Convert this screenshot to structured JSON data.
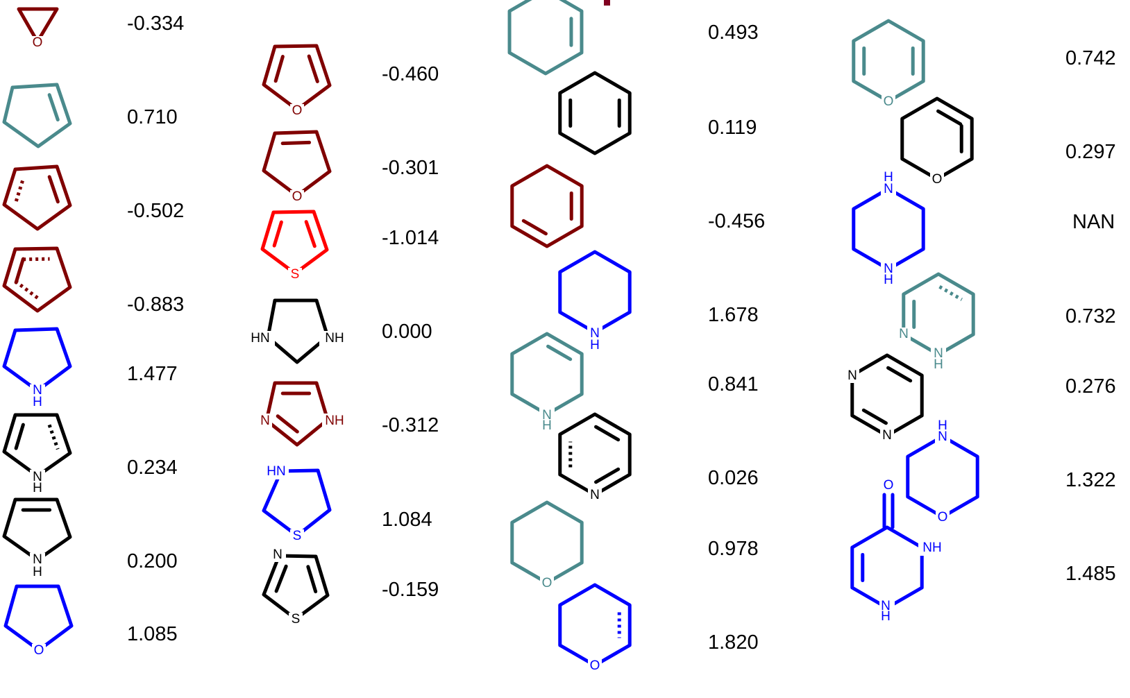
{
  "colors": {
    "dark_red": "#800000",
    "teal": "#4A8A8C",
    "black": "#000000",
    "blue": "#0000FF",
    "red": "#FF0000"
  },
  "molecules": [
    {
      "id": "oxirane",
      "value": "-0.334",
      "color": "dark_red",
      "atom_labels": [
        "O"
      ]
    },
    {
      "id": "cyclopentene",
      "value": "0.710",
      "color": "teal",
      "atom_labels": []
    },
    {
      "id": "cyclopentadiene-a",
      "value": "-0.502",
      "color": "dark_red",
      "atom_labels": []
    },
    {
      "id": "cyclopentadiene-b",
      "value": "-0.883",
      "color": "dark_red",
      "atom_labels": []
    },
    {
      "id": "pyrrolidine",
      "value": "1.477",
      "color": "blue",
      "atom_labels": [
        "N",
        "H"
      ]
    },
    {
      "id": "pyrrole",
      "value": "0.234",
      "color": "black",
      "atom_labels": [
        "N",
        "H"
      ]
    },
    {
      "id": "pyrroline",
      "value": "0.200",
      "color": "black",
      "atom_labels": [
        "N",
        "H"
      ]
    },
    {
      "id": "tetrahydrofuran",
      "value": "1.085",
      "color": "blue",
      "atom_labels": [
        "O"
      ]
    },
    {
      "id": "furan",
      "value": "-0.460",
      "color": "dark_red",
      "atom_labels": [
        "O"
      ]
    },
    {
      "id": "dihydrofuran",
      "value": "-0.301",
      "color": "dark_red",
      "atom_labels": [
        "O"
      ]
    },
    {
      "id": "thiophene",
      "value": "-1.014",
      "color": "red",
      "atom_labels": [
        "S"
      ]
    },
    {
      "id": "imidazolidine",
      "value": "0.000",
      "color": "black",
      "atom_labels": [
        "HN",
        "NH"
      ]
    },
    {
      "id": "imidazole",
      "value": "-0.312",
      "color": "dark_red",
      "atom_labels": [
        "N",
        "NH"
      ]
    },
    {
      "id": "thiazolidine",
      "value": "1.084",
      "color": "blue",
      "atom_labels": [
        "HN",
        "S"
      ]
    },
    {
      "id": "thiazole",
      "value": "-0.159",
      "color": "black",
      "atom_labels": [
        "N",
        "S"
      ]
    },
    {
      "id": "cyclohexene",
      "value": "0.493",
      "color": "teal",
      "atom_labels": []
    },
    {
      "id": "cyclohexadiene-14",
      "value": "0.119",
      "color": "black",
      "atom_labels": []
    },
    {
      "id": "cyclohexadiene-13",
      "value": "-0.456",
      "color": "dark_red",
      "atom_labels": []
    },
    {
      "id": "piperidine",
      "value": "1.678",
      "color": "blue",
      "atom_labels": [
        "N",
        "H"
      ]
    },
    {
      "id": "tetrahydropyridine",
      "value": "0.841",
      "color": "teal",
      "atom_labels": [
        "N",
        "H"
      ]
    },
    {
      "id": "pyridine",
      "value": "0.026",
      "color": "black",
      "atom_labels": [
        "N"
      ]
    },
    {
      "id": "tetrahydropyran",
      "value": "0.978",
      "color": "teal",
      "atom_labels": [
        "O"
      ]
    },
    {
      "id": "dihydropyran",
      "value": "1.820",
      "color": "blue",
      "atom_labels": [
        "O"
      ]
    },
    {
      "id": "4h-pyran",
      "value": "0.742",
      "color": "teal",
      "atom_labels": [
        "O"
      ]
    },
    {
      "id": "2h-pyran",
      "value": "0.297",
      "color": "black",
      "atom_labels": [
        "O"
      ]
    },
    {
      "id": "piperazine",
      "value": "NAN",
      "color": "blue",
      "atom_labels": [
        "H",
        "N",
        "N",
        "H"
      ]
    },
    {
      "id": "tetrahydropyridazine",
      "value": "0.732",
      "color": "teal",
      "atom_labels": [
        "N",
        "N",
        "H"
      ]
    },
    {
      "id": "pyrimidine",
      "value": "0.276",
      "color": "black",
      "atom_labels": [
        "N",
        "N"
      ]
    },
    {
      "id": "morpholine",
      "value": "1.322",
      "color": "blue",
      "atom_labels": [
        "H",
        "N",
        "O"
      ]
    },
    {
      "id": "dihydropyrimidinone",
      "value": "1.485",
      "color": "blue",
      "atom_labels": [
        "O",
        "NH",
        "N",
        "H"
      ]
    }
  ]
}
